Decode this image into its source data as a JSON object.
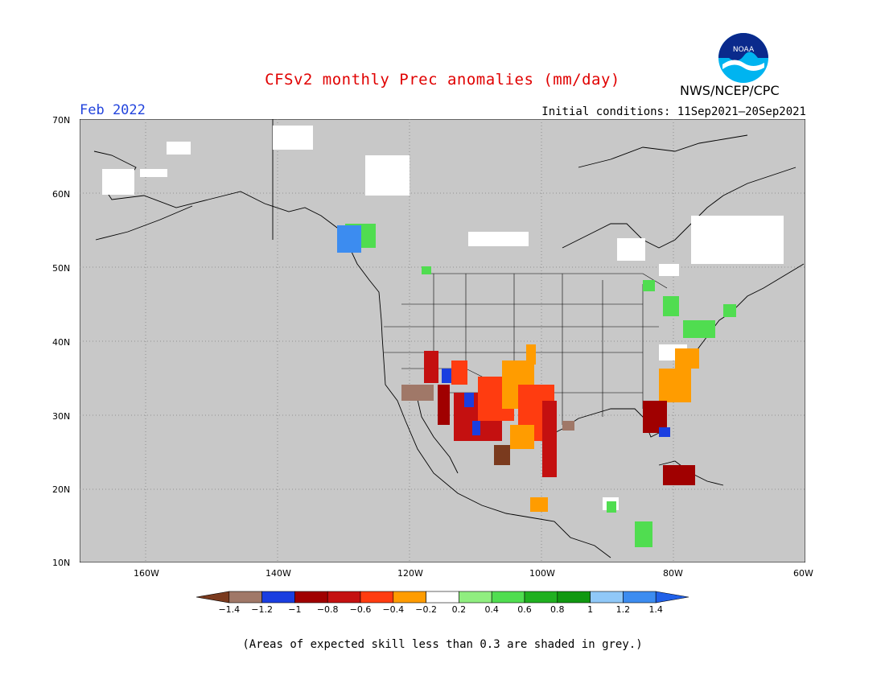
{
  "title": "CFSv2 monthly Prec anomalies (mm/day)",
  "month": "Feb 2022",
  "initial_conditions": "Initial conditions: 11Sep2021–20Sep2021",
  "agency": "NWS/NCEP/CPC",
  "logo_text": "NOAA",
  "footnote": "(Areas of expected skill less than 0.3 are shaded in grey.)",
  "lat_labels": [
    "70N",
    "60N",
    "50N",
    "40N",
    "30N",
    "20N",
    "10N"
  ],
  "lon_labels": [
    "160W",
    "140W",
    "120W",
    "100W",
    "80W",
    "60W"
  ],
  "colorbar": {
    "ticks": [
      "−1.4",
      "−1.2",
      "−1",
      "−0.8",
      "−0.6",
      "−0.4",
      "−0.2",
      "0.2",
      "0.4",
      "0.6",
      "0.8",
      "1",
      "1.2",
      "1.4"
    ],
    "colors": [
      "#7a3a1e",
      "#a07868",
      "#1a3ee0",
      "#a00000",
      "#c41010",
      "#ff3c10",
      "#ff9c00",
      "#ffffff",
      "#90ee80",
      "#50dd50",
      "#20b020",
      "#109810",
      "#90c8f8",
      "#3c8cf0",
      "#2060e8"
    ]
  },
  "colors": {
    "grey_mask": "#c8c8c8",
    "title": "#e00000",
    "month": "#2244dd"
  }
}
